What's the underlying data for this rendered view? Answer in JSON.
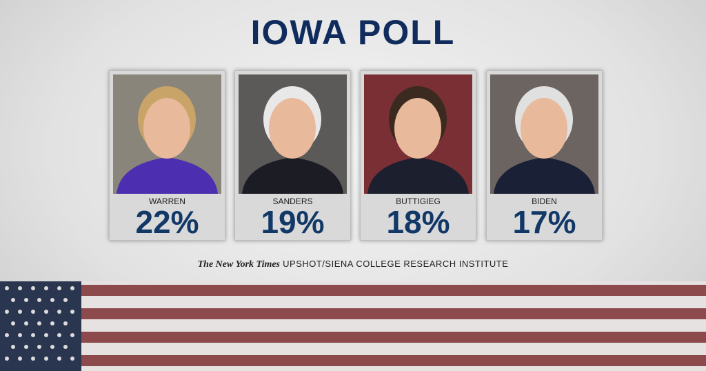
{
  "title": "IOWA POLL",
  "cards": [
    {
      "name": "WARREN",
      "percent": "22%"
    },
    {
      "name": "SANDERS",
      "percent": "19%"
    },
    {
      "name": "BUTTIGIEG",
      "percent": "18%"
    },
    {
      "name": "BIDEN",
      "percent": "17%"
    }
  ],
  "source": {
    "publisher": "The New York Times",
    "text": "UPSHOT/SIENA COLLEGE RESEARCH INSTITUTE"
  }
}
